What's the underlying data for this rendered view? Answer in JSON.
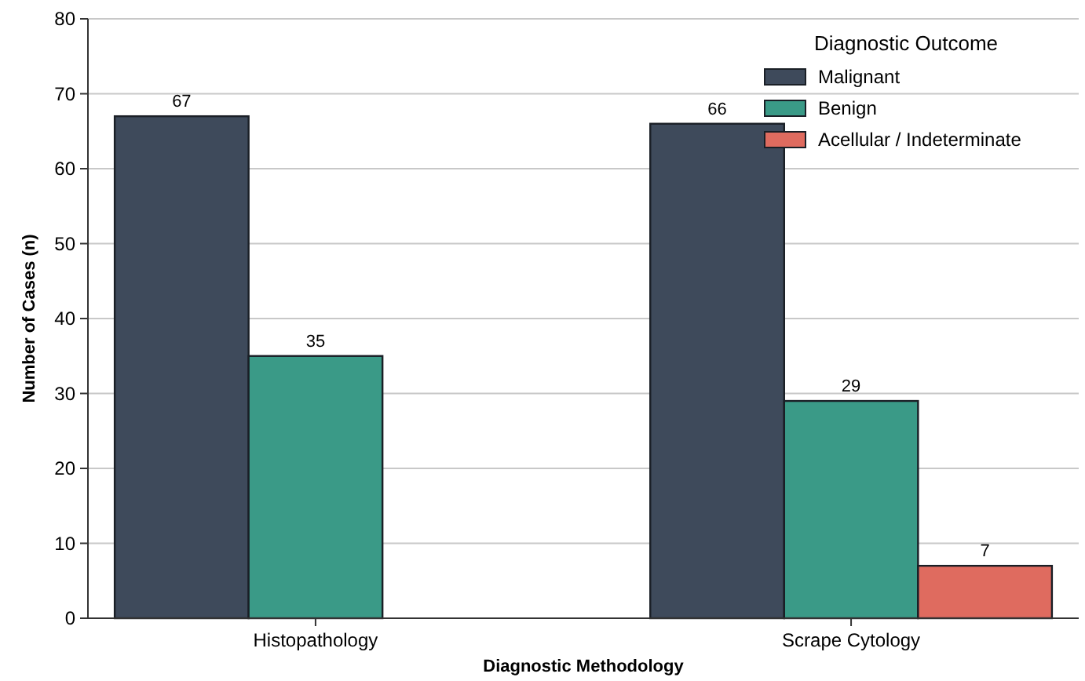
{
  "chart_data": {
    "type": "bar",
    "xlabel": "Diagnostic Methodology",
    "ylabel": "Number of Cases (n)",
    "legend_title": "Diagnostic Outcome",
    "categories": [
      "Histopathology",
      "Scrape Cytology"
    ],
    "series": [
      {
        "name": "Malignant",
        "color": "#3e4a5b",
        "values": [
          67,
          66
        ]
      },
      {
        "name": "Benign",
        "color": "#3a9a87",
        "values": [
          35,
          29
        ]
      },
      {
        "name": "Acellular / Indeterminate",
        "color": "#df6b5f",
        "values": [
          null,
          7
        ]
      }
    ],
    "ylim": [
      0,
      80
    ],
    "yticks": [
      0,
      10,
      20,
      30,
      40,
      50,
      60,
      70,
      80
    ],
    "grid": "y",
    "legend": "top right",
    "data_labels": true
  }
}
